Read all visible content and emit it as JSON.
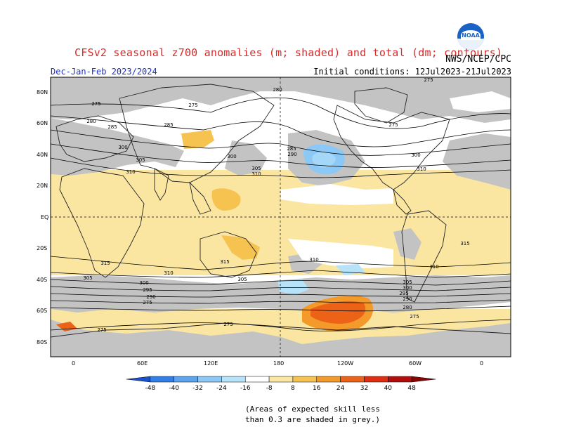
{
  "header": {
    "title": "CFSv2 seasonal z700 anomalies (m; shaded) and total (dm; contours)",
    "agency": "NWS/NCEP/CPC",
    "logo_text": "NOAA",
    "period": "Dec-Jan-Feb 2023/2024",
    "initial_conditions": "Initial conditions: 12Jul2023-21Jul2023"
  },
  "axes": {
    "lat_labels": [
      "80N",
      "60N",
      "40N",
      "20N",
      "EQ",
      "20S",
      "40S",
      "60S",
      "80S"
    ],
    "lon_labels": [
      "0",
      "60E",
      "120E",
      "180",
      "120W",
      "60W",
      "0"
    ]
  },
  "contour_labels": [
    "275",
    "280",
    "285",
    "290",
    "295",
    "300",
    "305",
    "310",
    "315"
  ],
  "colorbar": {
    "ticks": [
      "-48",
      "-40",
      "-32",
      "-24",
      "-16",
      "-8",
      "8",
      "16",
      "24",
      "32",
      "40",
      "48"
    ],
    "colors": [
      "#1a52c9",
      "#2f7fe6",
      "#5aa4f0",
      "#8cc8f5",
      "#b6e3fa",
      "#ffffff",
      "#fbe6a1",
      "#f7c350",
      "#f39a2a",
      "#ec6318",
      "#df2e10",
      "#b10d0d",
      "#8a0404"
    ]
  },
  "footnote": {
    "line1": "(Areas of expected skill less",
    "line2": "than 0.3 are shaded in grey.)"
  },
  "colors": {
    "grey": "#c3c3c3",
    "yellow": "#fbe6a1",
    "title_red": "#d92b2b",
    "period_blue": "#1c2fd0"
  }
}
